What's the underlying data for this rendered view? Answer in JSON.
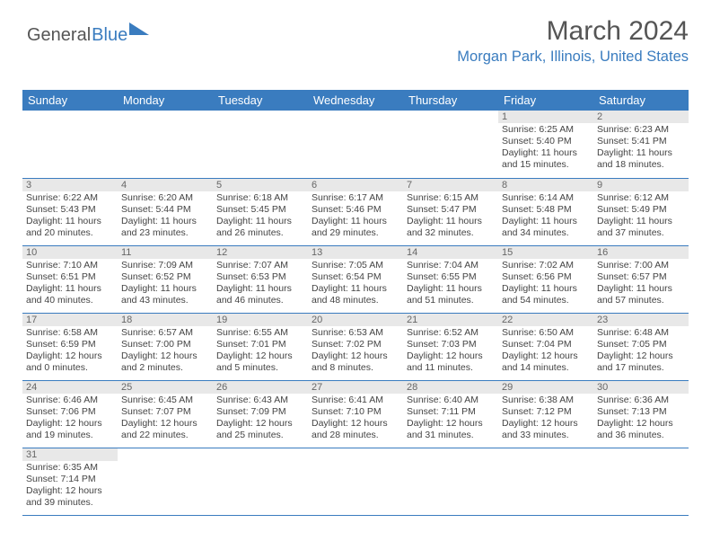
{
  "logo": {
    "general": "General",
    "blue": "Blue",
    "sail_color": "#3a7cbf"
  },
  "title": "March 2024",
  "location": "Morgan Park, Illinois, United States",
  "colors": {
    "header_bg": "#3a7cbf",
    "header_text": "#ffffff",
    "daynum_bg": "#e8e8e8",
    "text": "#444444",
    "border": "#3a7cbf",
    "location_text": "#3a7cbf",
    "title_text": "#555555"
  },
  "day_headers": [
    "Sunday",
    "Monday",
    "Tuesday",
    "Wednesday",
    "Thursday",
    "Friday",
    "Saturday"
  ],
  "first_weekday": 5,
  "days": [
    {
      "n": 1,
      "sunrise": "6:25 AM",
      "sunset": "5:40 PM",
      "daylight": "11 hours and 15 minutes."
    },
    {
      "n": 2,
      "sunrise": "6:23 AM",
      "sunset": "5:41 PM",
      "daylight": "11 hours and 18 minutes."
    },
    {
      "n": 3,
      "sunrise": "6:22 AM",
      "sunset": "5:43 PM",
      "daylight": "11 hours and 20 minutes."
    },
    {
      "n": 4,
      "sunrise": "6:20 AM",
      "sunset": "5:44 PM",
      "daylight": "11 hours and 23 minutes."
    },
    {
      "n": 5,
      "sunrise": "6:18 AM",
      "sunset": "5:45 PM",
      "daylight": "11 hours and 26 minutes."
    },
    {
      "n": 6,
      "sunrise": "6:17 AM",
      "sunset": "5:46 PM",
      "daylight": "11 hours and 29 minutes."
    },
    {
      "n": 7,
      "sunrise": "6:15 AM",
      "sunset": "5:47 PM",
      "daylight": "11 hours and 32 minutes."
    },
    {
      "n": 8,
      "sunrise": "6:14 AM",
      "sunset": "5:48 PM",
      "daylight": "11 hours and 34 minutes."
    },
    {
      "n": 9,
      "sunrise": "6:12 AM",
      "sunset": "5:49 PM",
      "daylight": "11 hours and 37 minutes."
    },
    {
      "n": 10,
      "sunrise": "7:10 AM",
      "sunset": "6:51 PM",
      "daylight": "11 hours and 40 minutes."
    },
    {
      "n": 11,
      "sunrise": "7:09 AM",
      "sunset": "6:52 PM",
      "daylight": "11 hours and 43 minutes."
    },
    {
      "n": 12,
      "sunrise": "7:07 AM",
      "sunset": "6:53 PM",
      "daylight": "11 hours and 46 minutes."
    },
    {
      "n": 13,
      "sunrise": "7:05 AM",
      "sunset": "6:54 PM",
      "daylight": "11 hours and 48 minutes."
    },
    {
      "n": 14,
      "sunrise": "7:04 AM",
      "sunset": "6:55 PM",
      "daylight": "11 hours and 51 minutes."
    },
    {
      "n": 15,
      "sunrise": "7:02 AM",
      "sunset": "6:56 PM",
      "daylight": "11 hours and 54 minutes."
    },
    {
      "n": 16,
      "sunrise": "7:00 AM",
      "sunset": "6:57 PM",
      "daylight": "11 hours and 57 minutes."
    },
    {
      "n": 17,
      "sunrise": "6:58 AM",
      "sunset": "6:59 PM",
      "daylight": "12 hours and 0 minutes."
    },
    {
      "n": 18,
      "sunrise": "6:57 AM",
      "sunset": "7:00 PM",
      "daylight": "12 hours and 2 minutes."
    },
    {
      "n": 19,
      "sunrise": "6:55 AM",
      "sunset": "7:01 PM",
      "daylight": "12 hours and 5 minutes."
    },
    {
      "n": 20,
      "sunrise": "6:53 AM",
      "sunset": "7:02 PM",
      "daylight": "12 hours and 8 minutes."
    },
    {
      "n": 21,
      "sunrise": "6:52 AM",
      "sunset": "7:03 PM",
      "daylight": "12 hours and 11 minutes."
    },
    {
      "n": 22,
      "sunrise": "6:50 AM",
      "sunset": "7:04 PM",
      "daylight": "12 hours and 14 minutes."
    },
    {
      "n": 23,
      "sunrise": "6:48 AM",
      "sunset": "7:05 PM",
      "daylight": "12 hours and 17 minutes."
    },
    {
      "n": 24,
      "sunrise": "6:46 AM",
      "sunset": "7:06 PM",
      "daylight": "12 hours and 19 minutes."
    },
    {
      "n": 25,
      "sunrise": "6:45 AM",
      "sunset": "7:07 PM",
      "daylight": "12 hours and 22 minutes."
    },
    {
      "n": 26,
      "sunrise": "6:43 AM",
      "sunset": "7:09 PM",
      "daylight": "12 hours and 25 minutes."
    },
    {
      "n": 27,
      "sunrise": "6:41 AM",
      "sunset": "7:10 PM",
      "daylight": "12 hours and 28 minutes."
    },
    {
      "n": 28,
      "sunrise": "6:40 AM",
      "sunset": "7:11 PM",
      "daylight": "12 hours and 31 minutes."
    },
    {
      "n": 29,
      "sunrise": "6:38 AM",
      "sunset": "7:12 PM",
      "daylight": "12 hours and 33 minutes."
    },
    {
      "n": 30,
      "sunrise": "6:36 AM",
      "sunset": "7:13 PM",
      "daylight": "12 hours and 36 minutes."
    },
    {
      "n": 31,
      "sunrise": "6:35 AM",
      "sunset": "7:14 PM",
      "daylight": "12 hours and 39 minutes."
    }
  ]
}
